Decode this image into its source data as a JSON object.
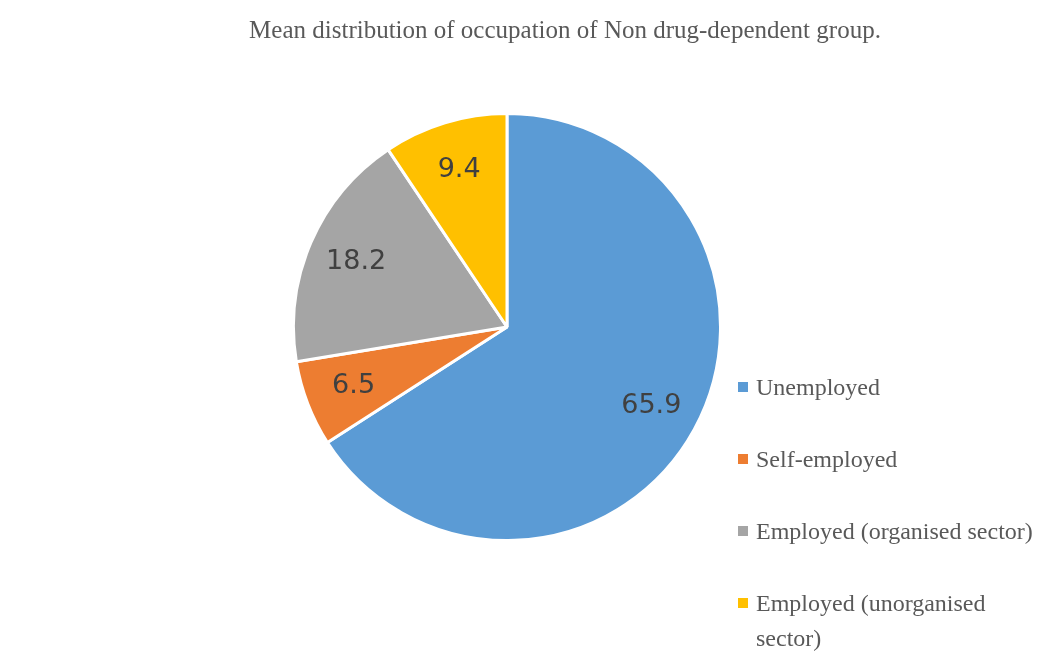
{
  "chart_data": {
    "type": "pie",
    "title": "Mean distribution of occupation of Non drug-dependent group.",
    "categories": [
      "Unemployed",
      "Self-employed",
      "Employed (organised sector)",
      "Employed (unorganised sector)"
    ],
    "values": [
      65.9,
      6.5,
      18.2,
      9.4
    ],
    "colors": [
      "#5b9bd5",
      "#ed7d31",
      "#a5a5a5",
      "#ffc000"
    ],
    "data_labels": true,
    "legend": "right"
  }
}
